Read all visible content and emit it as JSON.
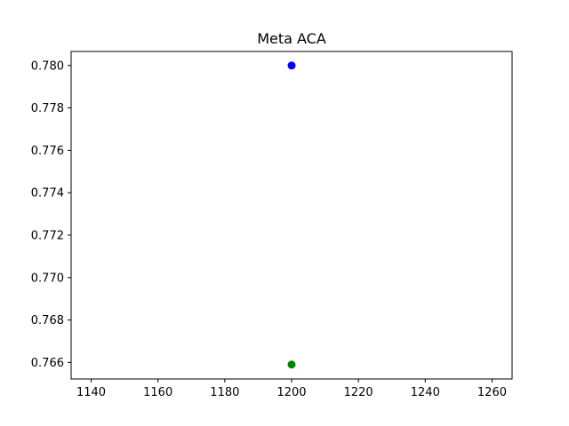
{
  "chart_data": {
    "type": "scatter",
    "title": "Meta ACA",
    "xlabel": "",
    "ylabel": "",
    "xlim": [
      1134,
      1266
    ],
    "ylim": [
      0.76522,
      0.78066
    ],
    "xticks": [
      1140,
      1160,
      1180,
      1200,
      1220,
      1240,
      1260
    ],
    "xtick_labels": [
      "1140",
      "1160",
      "1180",
      "1200",
      "1220",
      "1240",
      "1260"
    ],
    "yticks": [
      0.766,
      0.768,
      0.77,
      0.772,
      0.774,
      0.776,
      0.778,
      0.78
    ],
    "ytick_labels": [
      "0.766",
      "0.768",
      "0.770",
      "0.772",
      "0.774",
      "0.776",
      "0.778",
      "0.780"
    ],
    "grid": false,
    "series": [
      {
        "x": [
          1200
        ],
        "y": [
          0.78
        ],
        "color": "#0000ff"
      },
      {
        "x": [
          1200
        ],
        "y": [
          0.7659
        ],
        "color": "#008000"
      }
    ]
  }
}
